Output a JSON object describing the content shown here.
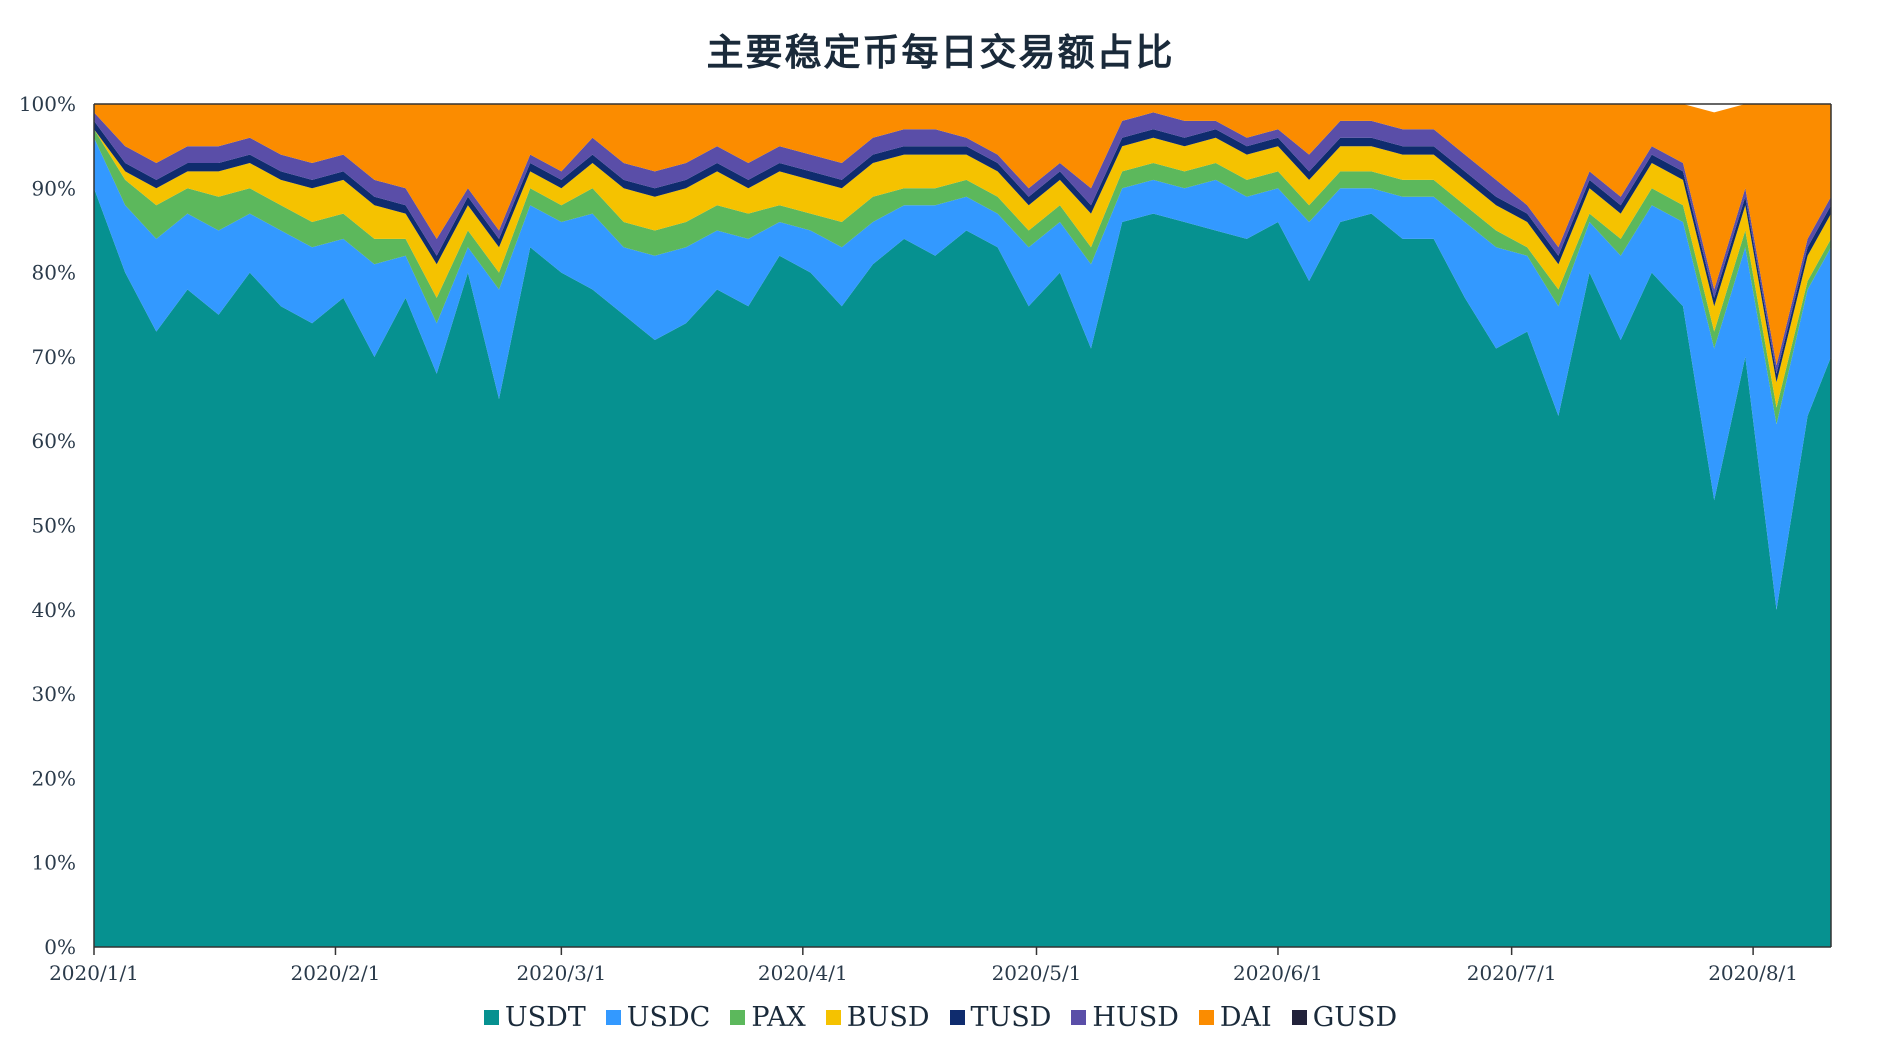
{
  "chart_data": {
    "type": "area",
    "stacked": true,
    "percent": true,
    "title": "主要稳定币每日交易额占比",
    "xlabel": "",
    "ylabel": "",
    "ylim": [
      0,
      100
    ],
    "yticks": [
      "0%",
      "10%",
      "20%",
      "30%",
      "40%",
      "50%",
      "60%",
      "70%",
      "80%",
      "90%",
      "100%"
    ],
    "x_start": "2020-01-01",
    "x_end": "2020-08-11",
    "xticks": [
      {
        "date": "2020-01-01",
        "label": "2020/1/1"
      },
      {
        "date": "2020-02-01",
        "label": "2020/2/1"
      },
      {
        "date": "2020-03-01",
        "label": "2020/3/1"
      },
      {
        "date": "2020-04-01",
        "label": "2020/4/1"
      },
      {
        "date": "2020-05-01",
        "label": "2020/5/1"
      },
      {
        "date": "2020-06-01",
        "label": "2020/6/1"
      },
      {
        "date": "2020-07-01",
        "label": "2020/7/1"
      },
      {
        "date": "2020-08-01",
        "label": "2020/8/1"
      }
    ],
    "legend_position": "bottom",
    "grid": false,
    "x": [
      "2020-01-01",
      "2020-01-05",
      "2020-01-09",
      "2020-01-13",
      "2020-01-17",
      "2020-01-21",
      "2020-01-25",
      "2020-01-29",
      "2020-02-02",
      "2020-02-06",
      "2020-02-10",
      "2020-02-14",
      "2020-02-18",
      "2020-02-22",
      "2020-02-26",
      "2020-03-01",
      "2020-03-05",
      "2020-03-09",
      "2020-03-13",
      "2020-03-17",
      "2020-03-21",
      "2020-03-25",
      "2020-03-29",
      "2020-04-02",
      "2020-04-06",
      "2020-04-10",
      "2020-04-14",
      "2020-04-18",
      "2020-04-22",
      "2020-04-26",
      "2020-04-30",
      "2020-05-04",
      "2020-05-08",
      "2020-05-12",
      "2020-05-16",
      "2020-05-20",
      "2020-05-24",
      "2020-05-28",
      "2020-06-01",
      "2020-06-05",
      "2020-06-09",
      "2020-06-13",
      "2020-06-17",
      "2020-06-21",
      "2020-06-25",
      "2020-06-29",
      "2020-07-03",
      "2020-07-07",
      "2020-07-11",
      "2020-07-15",
      "2020-07-19",
      "2020-07-23",
      "2020-07-27",
      "2020-07-31",
      "2020-08-04",
      "2020-08-08",
      "2020-08-11"
    ],
    "series": [
      {
        "name": "USDT",
        "color": "#069190",
        "values": [
          90,
          80,
          73,
          78,
          75,
          80,
          76,
          74,
          77,
          70,
          77,
          68,
          80,
          65,
          83,
          80,
          78,
          75,
          72,
          74,
          78,
          76,
          82,
          80,
          76,
          81,
          84,
          82,
          85,
          83,
          76,
          80,
          71,
          86,
          87,
          86,
          85,
          84,
          86,
          79,
          86,
          87,
          84,
          84,
          77,
          71,
          73,
          63,
          80,
          72,
          80,
          76,
          53,
          70,
          40,
          63,
          70
        ]
      },
      {
        "name": "USDC",
        "color": "#3399ff",
        "values": [
          6,
          8,
          11,
          9,
          10,
          7,
          9,
          9,
          7,
          11,
          5,
          6,
          3,
          13,
          5,
          6,
          9,
          8,
          10,
          9,
          7,
          8,
          4,
          5,
          7,
          5,
          4,
          6,
          4,
          4,
          7,
          6,
          10,
          4,
          4,
          4,
          6,
          5,
          4,
          7,
          4,
          3,
          5,
          5,
          9,
          12,
          9,
          13,
          6,
          10,
          8,
          10,
          18,
          13,
          22,
          15,
          13
        ]
      },
      {
        "name": "PAX",
        "color": "#5cb85c",
        "values": [
          1,
          3,
          4,
          3,
          4,
          3,
          3,
          3,
          3,
          3,
          2,
          3,
          2,
          2,
          2,
          2,
          3,
          3,
          3,
          3,
          3,
          3,
          2,
          2,
          3,
          3,
          2,
          2,
          2,
          2,
          2,
          2,
          2,
          2,
          2,
          2,
          2,
          2,
          2,
          2,
          2,
          2,
          2,
          2,
          2,
          2,
          1,
          2,
          1,
          2,
          2,
          2,
          2,
          2,
          2,
          1,
          1
        ]
      },
      {
        "name": "BUSD",
        "color": "#f5c200",
        "values": [
          0,
          1,
          2,
          2,
          3,
          3,
          3,
          4,
          4,
          4,
          3,
          4,
          3,
          3,
          2,
          2,
          3,
          4,
          4,
          4,
          4,
          3,
          4,
          4,
          4,
          4,
          4,
          4,
          3,
          3,
          3,
          3,
          4,
          3,
          3,
          3,
          3,
          3,
          3,
          3,
          3,
          3,
          3,
          3,
          3,
          3,
          3,
          3,
          3,
          3,
          3,
          3,
          3,
          3,
          3,
          3,
          3
        ]
      },
      {
        "name": "TUSD",
        "color": "#0f2c6e",
        "values": [
          1,
          1,
          1,
          1,
          1,
          1,
          1,
          1,
          1,
          1,
          1,
          1,
          1,
          1,
          1,
          1,
          1,
          1,
          1,
          1,
          1,
          1,
          1,
          1,
          1,
          1,
          1,
          1,
          1,
          1,
          1,
          1,
          1,
          1,
          1,
          1,
          1,
          1,
          1,
          1,
          1,
          1,
          1,
          1,
          1,
          1,
          1,
          1,
          1,
          1,
          1,
          1,
          1,
          1,
          1,
          1,
          1
        ]
      },
      {
        "name": "HUSD",
        "color": "#5a4ea8",
        "values": [
          1,
          2,
          2,
          2,
          2,
          2,
          2,
          2,
          2,
          2,
          2,
          2,
          1,
          1,
          1,
          1,
          2,
          2,
          2,
          2,
          2,
          2,
          2,
          2,
          2,
          2,
          2,
          2,
          1,
          1,
          1,
          1,
          2,
          2,
          2,
          2,
          1,
          1,
          1,
          2,
          2,
          2,
          2,
          2,
          2,
          2,
          1,
          1,
          1,
          1,
          1,
          1,
          1,
          1,
          1,
          1,
          1
        ]
      },
      {
        "name": "DAI",
        "color": "#fb8c00",
        "values": [
          1,
          5,
          7,
          5,
          5,
          4,
          6,
          7,
          6,
          9,
          10,
          16,
          10,
          15,
          6,
          8,
          4,
          7,
          8,
          7,
          5,
          7,
          5,
          6,
          7,
          4,
          3,
          3,
          4,
          6,
          10,
          7,
          10,
          2,
          1,
          2,
          2,
          4,
          3,
          6,
          2,
          2,
          3,
          3,
          6,
          9,
          12,
          17,
          8,
          11,
          5,
          7,
          21,
          10,
          31,
          16,
          11
        ]
      },
      {
        "name": "GUSD",
        "color": "#22223a",
        "values": [
          0,
          0,
          0,
          0,
          0,
          0,
          0,
          0,
          0,
          0,
          0,
          0,
          0,
          0,
          0,
          0,
          0,
          0,
          0,
          0,
          0,
          0,
          0,
          0,
          0,
          0,
          0,
          0,
          0,
          0,
          0,
          0,
          0,
          0,
          0,
          0,
          0,
          0,
          0,
          0,
          0,
          0,
          0,
          0,
          0,
          0,
          0,
          0,
          0,
          0,
          0,
          0,
          0,
          0,
          0,
          0,
          0
        ]
      }
    ]
  }
}
